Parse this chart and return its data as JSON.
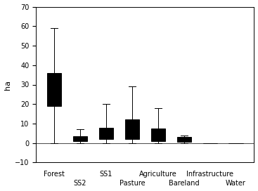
{
  "title": "",
  "ylabel": "ha",
  "ylim": [
    -10,
    70
  ],
  "yticks": [
    -10,
    0,
    10,
    20,
    30,
    40,
    50,
    60,
    70
  ],
  "boxplots": [
    {
      "label": "Forest",
      "row": 1,
      "whislo": 0,
      "q1": 19,
      "med": 27,
      "q3": 36,
      "whishi": 59
    },
    {
      "label": "SS2",
      "row": 2,
      "whislo": 0,
      "q1": 1,
      "med": 2,
      "q3": 3.5,
      "whishi": 7
    },
    {
      "label": "SS1",
      "row": 1,
      "whislo": 0,
      "q1": 2,
      "med": 5,
      "q3": 8,
      "whishi": 20
    },
    {
      "label": "Pasture",
      "row": 2,
      "whislo": 0,
      "q1": 2,
      "med": 5,
      "q3": 12,
      "whishi": 29
    },
    {
      "label": "Agriculture",
      "row": 1,
      "whislo": 0,
      "q1": 1,
      "med": 4.5,
      "q3": 7.5,
      "whishi": 18
    },
    {
      "label": "Bareland",
      "row": 2,
      "whislo": 0,
      "q1": 0.5,
      "med": 1.5,
      "q3": 3,
      "whishi": 4
    },
    {
      "label": "Infrastructure",
      "row": 1,
      "whislo": 0,
      "q1": 0,
      "med": 0,
      "q3": 0,
      "whishi": 0
    },
    {
      "label": "Water",
      "row": 2,
      "whislo": 0,
      "q1": 0,
      "med": 0,
      "q3": 0,
      "whishi": 0
    }
  ],
  "background_color": "#ffffff",
  "box_facecolor": "#ffffff",
  "line_color": "#000000",
  "linewidth": 0.7,
  "box_width": 0.55,
  "tick_fontsize": 7,
  "label_fontsize": 8
}
